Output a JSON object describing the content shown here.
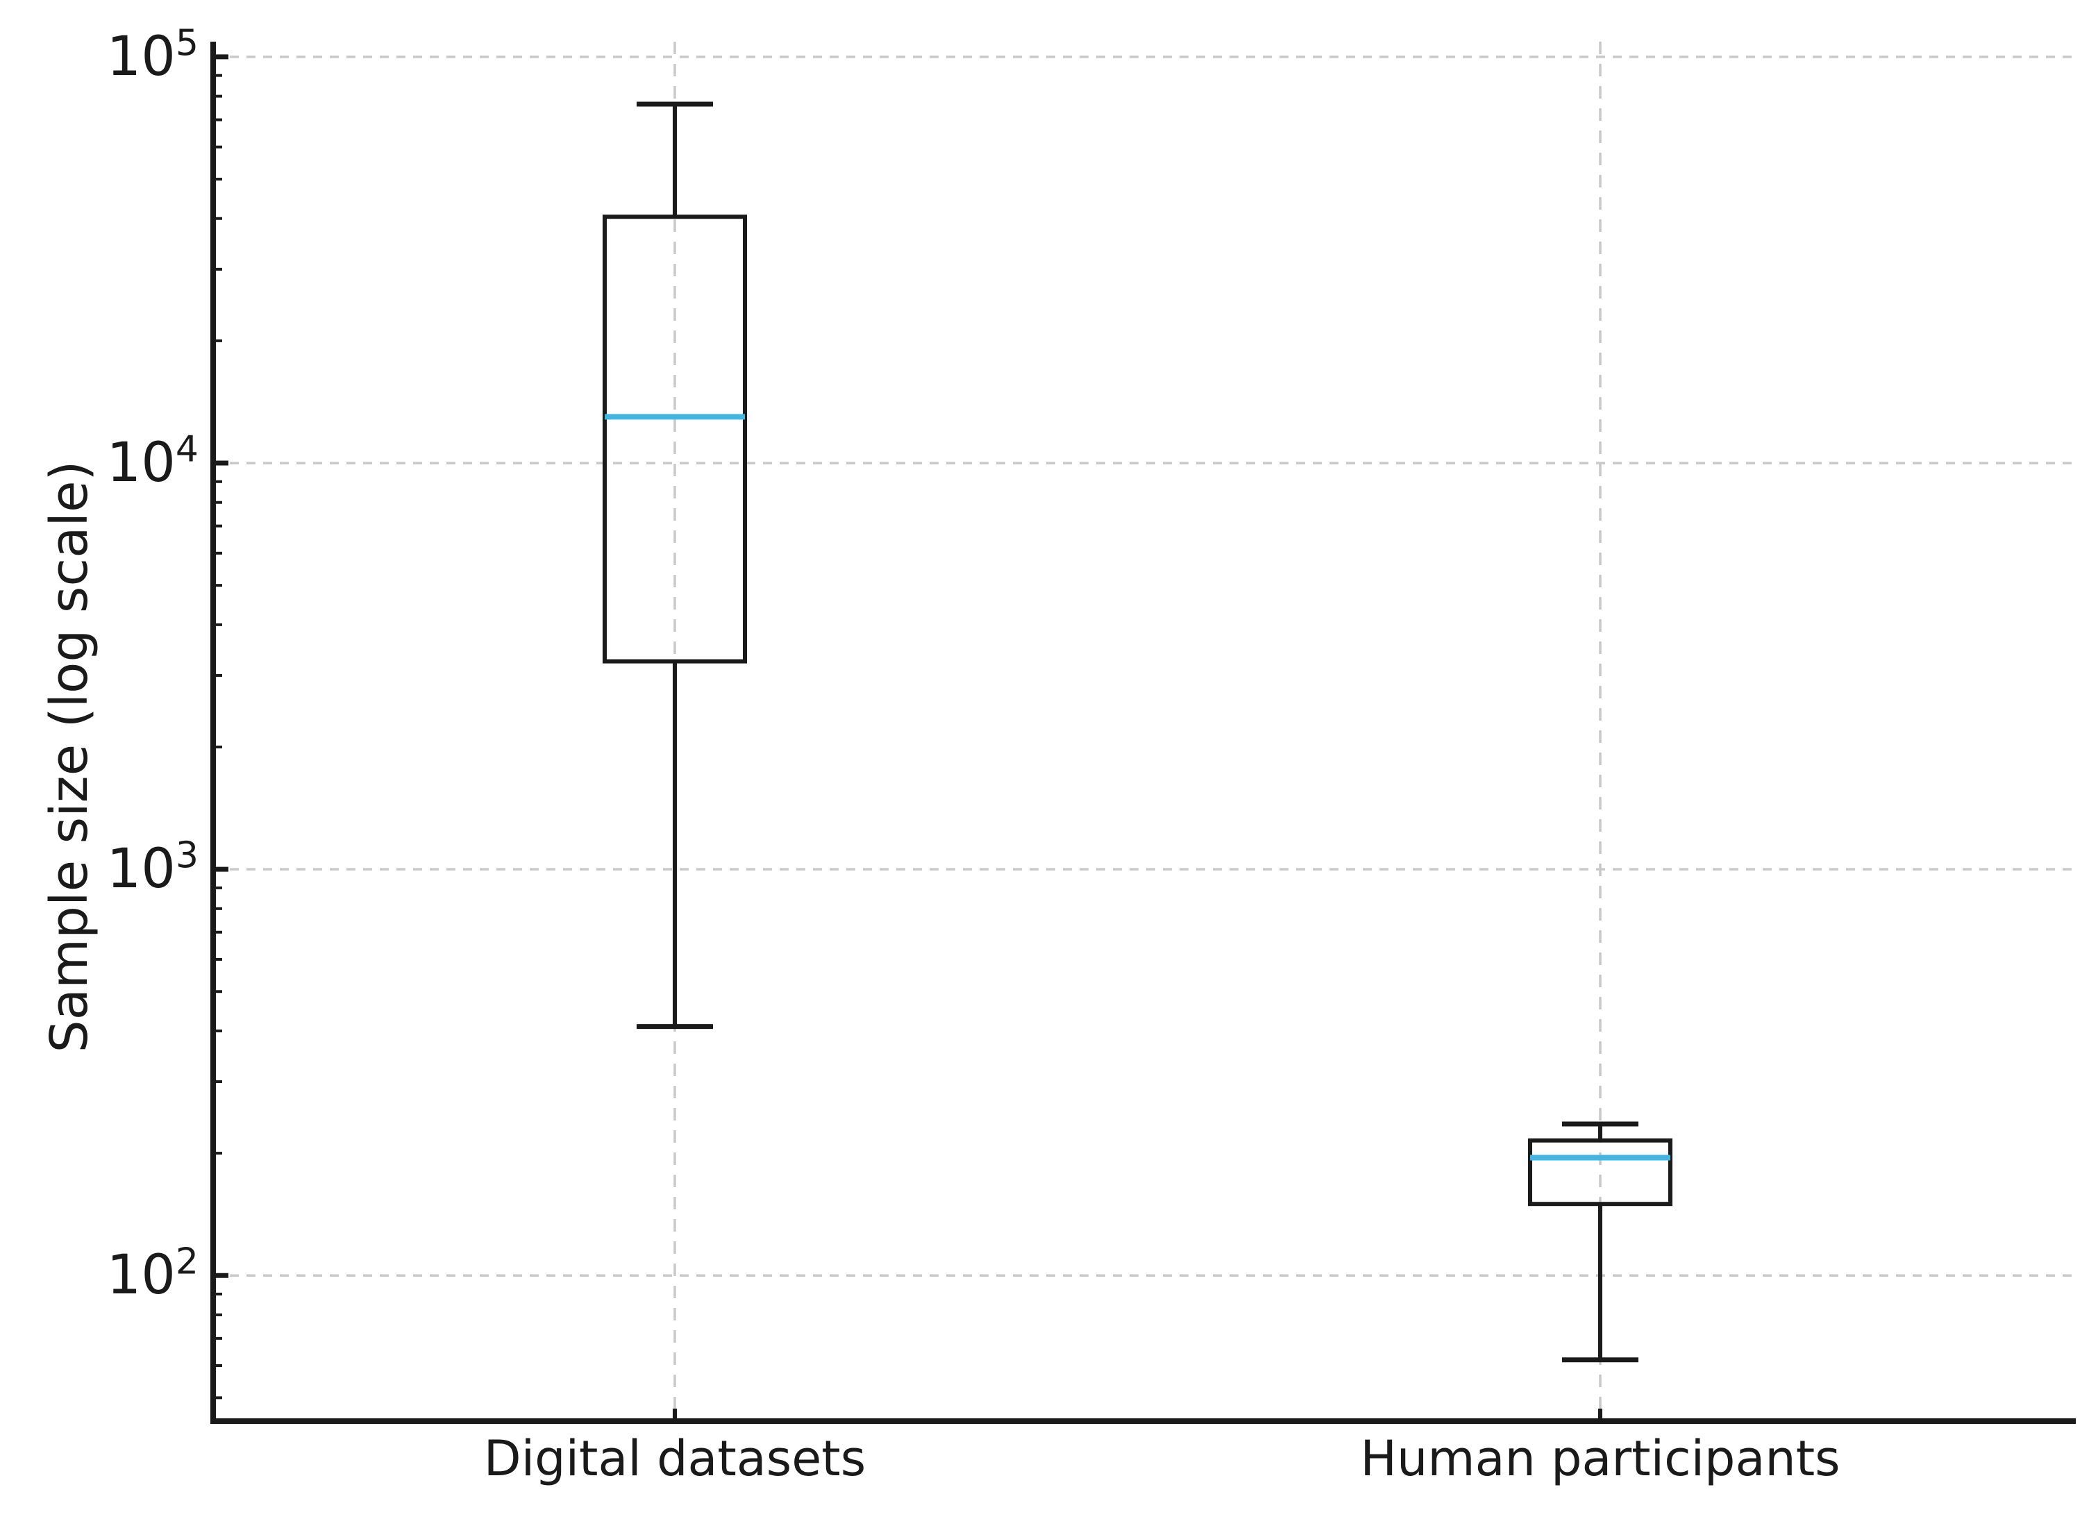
{
  "chart_data": {
    "type": "box",
    "title": "",
    "xlabel": "",
    "ylabel": "Sample size (log scale)",
    "yscale": "log",
    "ylim": [
      43.8,
      109000
    ],
    "yticks": [
      {
        "value": 100,
        "base": "10",
        "exp": "2"
      },
      {
        "value": 1000,
        "base": "10",
        "exp": "3"
      },
      {
        "value": 10000,
        "base": "10",
        "exp": "4"
      },
      {
        "value": 100000,
        "base": "10",
        "exp": "5"
      }
    ],
    "categories": [
      "Digital datasets",
      "Human participants"
    ],
    "series": [
      {
        "name": "Digital datasets",
        "whisker_low": 410,
        "q1": 3250,
        "median": 13000,
        "q3": 40400,
        "whisker_high": 76500
      },
      {
        "name": "Human participants",
        "whisker_low": 62,
        "q1": 150,
        "median": 195,
        "q3": 215,
        "whisker_high": 236
      }
    ],
    "grid": {
      "style": "dashed",
      "major_horizontal": true,
      "vertical_at_categories": true
    },
    "legend": "none",
    "colors": {
      "line": "#1a1a1a",
      "median": "#41b6e3",
      "grid": "#c9c9c9",
      "background": "#ffffff"
    }
  }
}
